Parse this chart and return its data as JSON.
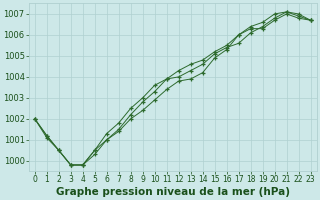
{
  "title": "Graphe pression niveau de la mer (hPa)",
  "x_values": [
    0,
    1,
    2,
    3,
    4,
    5,
    6,
    7,
    8,
    9,
    10,
    11,
    12,
    13,
    14,
    15,
    16,
    17,
    18,
    19,
    20,
    21,
    22,
    23
  ],
  "line1": [
    1002.0,
    1001.1,
    1000.5,
    999.8,
    999.8,
    1000.3,
    1001.0,
    1001.4,
    1002.0,
    1002.4,
    1002.9,
    1003.4,
    1003.8,
    1003.9,
    1004.2,
    1004.9,
    1005.3,
    1006.0,
    1006.3,
    1006.3,
    1006.7,
    1007.0,
    1006.8,
    1006.7
  ],
  "line2": [
    1002.0,
    1001.2,
    1000.5,
    999.8,
    999.8,
    1000.5,
    1001.3,
    1001.8,
    1002.5,
    1003.0,
    1003.6,
    1003.9,
    1004.3,
    1004.6,
    1004.8,
    1005.2,
    1005.5,
    1006.0,
    1006.4,
    1006.6,
    1007.0,
    1007.1,
    1007.0,
    1006.7
  ],
  "line3": [
    1002.0,
    1001.2,
    1000.5,
    999.8,
    999.8,
    1000.5,
    1001.0,
    1001.5,
    1002.2,
    1002.8,
    1003.3,
    1003.9,
    1004.0,
    1004.3,
    1004.6,
    1005.1,
    1005.4,
    1005.6,
    1006.1,
    1006.4,
    1006.8,
    1007.1,
    1006.9,
    1006.7
  ],
  "ylim_min": 999.5,
  "ylim_max": 1007.5,
  "yticks": [
    1000,
    1001,
    1002,
    1003,
    1004,
    1005,
    1006,
    1007
  ],
  "line_color": "#2d6a2d",
  "bg_color": "#cde8e8",
  "grid_color": "#b0d0d0",
  "label_color": "#1a501a",
  "title_fontsize": 7.5,
  "tick_fontsize": 6.0,
  "xtick_fontsize": 5.5,
  "figwidth": 3.2,
  "figheight": 2.0,
  "dpi": 100
}
